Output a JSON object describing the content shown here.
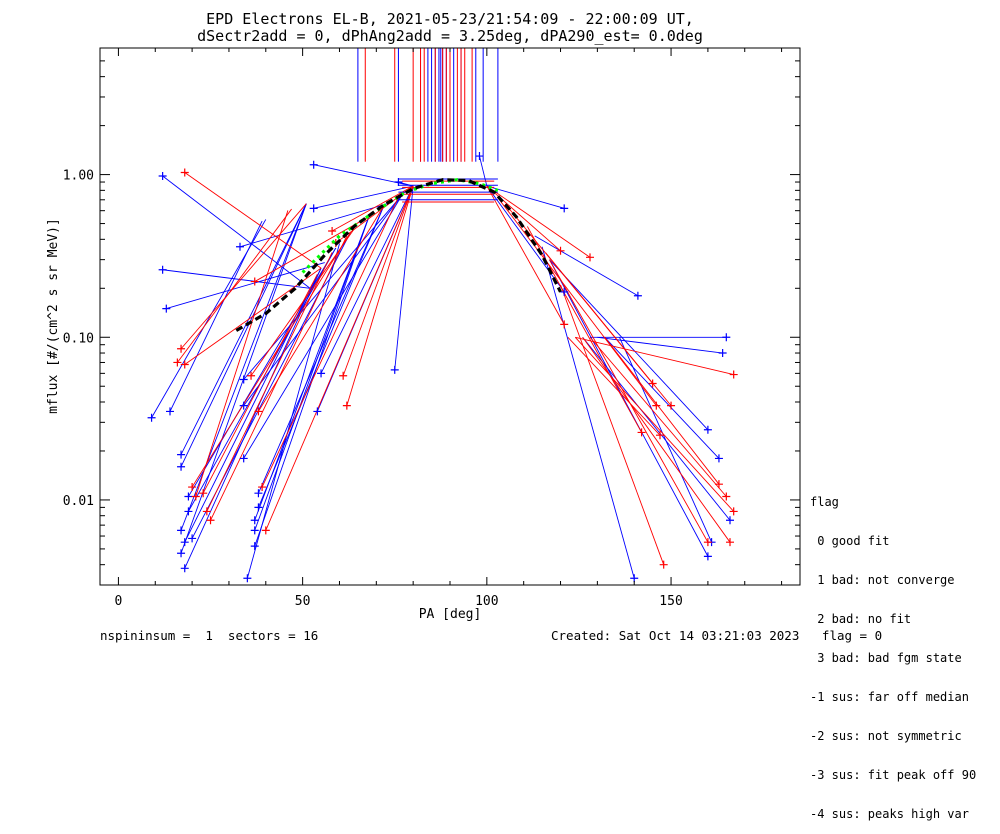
{
  "chart_data": {
    "type": "scatter",
    "title": "EPD Electrons EL-B, 2021-05-23/21:54:09 - 22:00:09 UT,",
    "subtitle": "dSectr2add = 0, dPhAng2add = 3.25deg, dPA290_est=    0.0deg",
    "xlabel": "PA [deg]",
    "ylabel": "mflux [#/(cm^2 s sr MeV)]",
    "xlim": [
      -5,
      185
    ],
    "ylim_log": [
      0.003,
      6.0
    ],
    "y_scale": "log",
    "x_ticks": [
      0,
      50,
      100,
      150
    ],
    "x_tick_labels": [
      "0",
      "50",
      "100",
      "150"
    ],
    "y_ticks": [
      0.01,
      0.1,
      1.0
    ],
    "y_tick_labels": [
      "0.01",
      "0.10",
      "1.00"
    ],
    "colors": {
      "blue": "#0000ff",
      "red": "#ff0000",
      "green": "#00ff00",
      "black": "#000000"
    },
    "peak_markers": {
      "y_range": [
        1.2,
        6.0
      ],
      "blue_x": [
        65,
        76,
        82,
        84,
        85,
        86,
        87,
        87.5,
        88,
        89,
        91,
        93,
        97,
        99,
        103
      ],
      "red_x": [
        67,
        75,
        80,
        82,
        83,
        86,
        88,
        89,
        90,
        92,
        93,
        94,
        96
      ]
    },
    "series": [
      {
        "color": "blue",
        "points": [
          [
            9,
            0.032
          ],
          [
            12,
            0.26
          ],
          [
            12,
            0.98
          ],
          [
            13,
            0.15
          ],
          [
            14,
            0.035
          ],
          [
            17,
            0.019
          ],
          [
            17,
            0.016
          ],
          [
            17,
            0.0065
          ],
          [
            17,
            0.0047
          ],
          [
            18,
            0.0055
          ],
          [
            18,
            0.0038
          ],
          [
            19,
            0.0105
          ],
          [
            19,
            0.0085
          ],
          [
            20,
            0.0058
          ],
          [
            33,
            0.36
          ],
          [
            34,
            0.055
          ],
          [
            34,
            0.038
          ],
          [
            34,
            0.018
          ],
          [
            35,
            0.0033
          ],
          [
            37,
            0.0075
          ],
          [
            37,
            0.0065
          ],
          [
            37,
            0.0052
          ],
          [
            38,
            0.011
          ],
          [
            38,
            0.009
          ],
          [
            53,
            1.15
          ],
          [
            53,
            0.62
          ],
          [
            54,
            0.035
          ],
          [
            55,
            0.06
          ],
          [
            75,
            0.063
          ],
          [
            76,
            0.9
          ],
          [
            98,
            1.3
          ],
          [
            121,
            0.62
          ],
          [
            121,
            0.19
          ],
          [
            140,
            0.0033
          ],
          [
            141,
            0.18
          ],
          [
            160,
            0.027
          ],
          [
            163,
            0.018
          ],
          [
            164,
            0.08
          ],
          [
            165,
            0.1
          ],
          [
            166,
            0.0075
          ],
          [
            160,
            0.0045
          ],
          [
            161,
            0.0055
          ]
        ]
      },
      {
        "color": "red",
        "points": [
          [
            16,
            0.07
          ],
          [
            17,
            0.085
          ],
          [
            18,
            1.03
          ],
          [
            18,
            0.068
          ],
          [
            20,
            0.012
          ],
          [
            21,
            0.0105
          ],
          [
            23,
            0.011
          ],
          [
            24,
            0.0085
          ],
          [
            25,
            0.0075
          ],
          [
            36,
            0.058
          ],
          [
            37,
            0.22
          ],
          [
            38,
            0.035
          ],
          [
            39,
            0.012
          ],
          [
            40,
            0.0065
          ],
          [
            58,
            0.45
          ],
          [
            59,
            0.38
          ],
          [
            61,
            0.058
          ],
          [
            62,
            0.038
          ],
          [
            120,
            0.34
          ],
          [
            121,
            0.12
          ],
          [
            128,
            0.31
          ],
          [
            142,
            0.026
          ],
          [
            145,
            0.052
          ],
          [
            146,
            0.038
          ],
          [
            147,
            0.025
          ],
          [
            148,
            0.004
          ],
          [
            150,
            0.038
          ],
          [
            160,
            0.0055
          ],
          [
            163,
            0.0125
          ],
          [
            165,
            0.0105
          ],
          [
            166,
            0.0055
          ],
          [
            167,
            0.0085
          ],
          [
            167,
            0.059
          ]
        ]
      }
    ],
    "fit_curves": [
      {
        "color": "green",
        "style": "dotted",
        "points": [
          [
            50,
            0.25
          ],
          [
            60,
            0.42
          ],
          [
            70,
            0.6
          ],
          [
            78,
            0.78
          ],
          [
            85,
            0.88
          ],
          [
            92,
            0.93
          ],
          [
            98,
            0.88
          ],
          [
            103,
            0.8
          ]
        ]
      },
      {
        "color": "black",
        "style": "dashed",
        "points": [
          [
            32,
            0.11
          ],
          [
            40,
            0.14
          ],
          [
            48,
            0.2
          ],
          [
            56,
            0.32
          ],
          [
            64,
            0.48
          ],
          [
            72,
            0.65
          ],
          [
            80,
            0.82
          ],
          [
            88,
            0.93
          ],
          [
            95,
            0.92
          ],
          [
            102,
            0.78
          ],
          [
            108,
            0.55
          ],
          [
            115,
            0.32
          ],
          [
            120,
            0.19
          ]
        ]
      }
    ],
    "legend_placement": "bottom-right-outside",
    "legend": {
      "title": "flag",
      "entries": [
        " 0 good fit",
        " 1 bad: not converge",
        " 2 bad: no fit",
        " 3 bad: bad fgm state",
        "-1 sus: far off median",
        "-2 sus: not symmetric",
        "-3 sus: fit peak off 90",
        "-4 sus: peaks high var"
      ]
    }
  },
  "footer": {
    "left": "nspininsum =  1  sectors = 16",
    "right": "Created: Sat Oct 14 03:21:03 2023   flag = 0"
  }
}
